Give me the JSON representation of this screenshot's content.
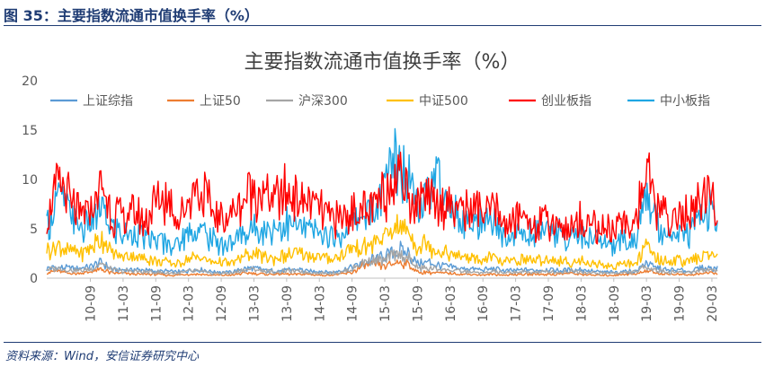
{
  "figure": {
    "caption": "图 35：主要指数流通市值换手率（%）",
    "source": "资料来源：Wind，安信证券研究中心"
  },
  "colors": {
    "caption": "#1f3c74",
    "axis_text": "#595959",
    "gridline": "#d9d9d9"
  },
  "chart_data": {
    "type": "line",
    "title": "主要指数流通市值换手率（%）",
    "xlabel": "",
    "ylabel": "",
    "ylim": [
      0,
      20
    ],
    "yticks": [
      0,
      5,
      10,
      15,
      20
    ],
    "grid": false,
    "legend_position": "top",
    "x_tick_labels": [
      "10-09",
      "11-03",
      "11-09",
      "12-03",
      "12-09",
      "13-03",
      "13-09",
      "14-03",
      "14-09",
      "15-03",
      "15-09",
      "16-03",
      "16-09",
      "17-03",
      "17-09",
      "18-03",
      "18-09",
      "19-03",
      "19-09",
      "20-03"
    ],
    "x": [
      "10-01",
      "10-03",
      "10-05",
      "10-07",
      "10-09",
      "10-11",
      "11-01",
      "11-03",
      "11-05",
      "11-07",
      "11-09",
      "11-11",
      "12-01",
      "12-03",
      "12-05",
      "12-07",
      "12-09",
      "12-11",
      "13-01",
      "13-03",
      "13-05",
      "13-07",
      "13-09",
      "13-11",
      "14-01",
      "14-03",
      "14-05",
      "14-07",
      "14-09",
      "14-11",
      "15-01",
      "15-03",
      "15-05",
      "15-07",
      "15-09",
      "15-11",
      "16-01",
      "16-03",
      "16-05",
      "16-07",
      "16-09",
      "16-11",
      "17-01",
      "17-03",
      "17-05",
      "17-07",
      "17-09",
      "17-11",
      "18-01",
      "18-03",
      "18-05",
      "18-07",
      "18-09",
      "18-11",
      "19-01",
      "19-03",
      "19-05",
      "19-07",
      "19-09",
      "19-11",
      "20-01",
      "20-03",
      "20-04"
    ],
    "series": [
      {
        "name": "上证综指",
        "color": "#5b9bd5",
        "values": [
          1.0,
          1.1,
          1.0,
          1.0,
          1.1,
          1.6,
          0.9,
          0.8,
          0.9,
          0.8,
          0.7,
          0.7,
          0.6,
          0.8,
          0.9,
          0.7,
          0.6,
          0.6,
          0.9,
          1.0,
          0.8,
          0.7,
          0.8,
          0.9,
          0.7,
          0.7,
          0.6,
          0.8,
          1.1,
          1.5,
          1.9,
          2.2,
          2.9,
          2.6,
          1.5,
          1.6,
          1.3,
          1.1,
          1.0,
          0.9,
          0.8,
          1.0,
          0.7,
          0.8,
          0.8,
          0.8,
          0.9,
          0.8,
          0.8,
          0.9,
          0.7,
          0.6,
          0.6,
          0.7,
          0.7,
          1.6,
          1.0,
          0.8,
          0.8,
          0.7,
          1.0,
          1.1,
          0.9
        ]
      },
      {
        "name": "上证50",
        "color": "#ed7d31",
        "values": [
          0.6,
          0.7,
          0.5,
          0.5,
          0.6,
          0.9,
          0.5,
          0.5,
          0.4,
          0.4,
          0.4,
          0.3,
          0.3,
          0.4,
          0.4,
          0.3,
          0.3,
          0.3,
          0.5,
          0.5,
          0.4,
          0.4,
          0.4,
          0.4,
          0.4,
          0.3,
          0.3,
          0.4,
          0.6,
          1.2,
          1.4,
          1.2,
          1.6,
          1.5,
          0.6,
          0.6,
          0.5,
          0.5,
          0.4,
          0.4,
          0.3,
          0.4,
          0.3,
          0.4,
          0.4,
          0.4,
          0.4,
          0.4,
          0.5,
          0.4,
          0.3,
          0.3,
          0.3,
          0.4,
          0.4,
          0.8,
          0.5,
          0.4,
          0.4,
          0.3,
          0.5,
          0.5,
          0.5
        ]
      },
      {
        "name": "沪深300",
        "color": "#a5a5a5",
        "values": [
          0.9,
          1.0,
          0.8,
          0.8,
          0.9,
          1.5,
          0.8,
          0.7,
          0.7,
          0.6,
          0.6,
          0.5,
          0.5,
          0.7,
          0.7,
          0.5,
          0.5,
          0.5,
          0.8,
          0.9,
          0.7,
          0.6,
          0.7,
          0.7,
          0.6,
          0.5,
          0.5,
          0.6,
          0.9,
          1.6,
          1.8,
          1.7,
          2.4,
          2.2,
          1.0,
          1.0,
          0.9,
          0.8,
          0.7,
          0.6,
          0.5,
          0.7,
          0.5,
          0.6,
          0.6,
          0.6,
          0.7,
          0.6,
          0.7,
          0.7,
          0.5,
          0.5,
          0.5,
          0.6,
          0.6,
          1.2,
          0.8,
          0.6,
          0.6,
          0.6,
          0.8,
          0.9,
          0.8
        ]
      },
      {
        "name": "中证500",
        "color": "#ffc000",
        "values": [
          2.8,
          3.2,
          2.7,
          2.6,
          2.9,
          4.2,
          2.4,
          2.2,
          2.3,
          2.0,
          1.8,
          1.6,
          1.5,
          2.0,
          2.2,
          1.7,
          1.6,
          1.5,
          2.2,
          2.5,
          2.1,
          2.0,
          2.3,
          2.4,
          2.2,
          2.1,
          1.9,
          2.2,
          3.0,
          3.1,
          3.6,
          4.0,
          5.4,
          4.8,
          3.2,
          3.4,
          2.9,
          2.4,
          2.2,
          2.0,
          1.8,
          2.1,
          1.6,
          1.8,
          1.9,
          1.8,
          2.0,
          1.7,
          1.6,
          1.8,
          1.5,
          1.3,
          1.3,
          1.5,
          1.5,
          3.2,
          2.0,
          1.7,
          1.8,
          1.6,
          2.2,
          2.4,
          2.0
        ]
      },
      {
        "name": "创业板指",
        "color": "#ff0000",
        "values": [
          5.5,
          9.5,
          8.0,
          6.0,
          7.0,
          9.0,
          6.5,
          6.0,
          6.5,
          5.5,
          7.5,
          8.0,
          6.0,
          8.0,
          9.5,
          7.0,
          6.0,
          6.5,
          8.0,
          9.5,
          8.5,
          8.0,
          9.0,
          8.0,
          7.5,
          7.0,
          6.0,
          6.0,
          7.0,
          6.5,
          7.0,
          8.5,
          11.5,
          9.0,
          7.0,
          8.5,
          8.0,
          7.5,
          7.0,
          7.0,
          6.5,
          7.0,
          5.5,
          6.0,
          6.0,
          5.5,
          6.0,
          5.5,
          5.0,
          6.0,
          5.5,
          5.0,
          5.0,
          5.5,
          6.0,
          10.5,
          7.0,
          6.0,
          6.5,
          6.0,
          8.0,
          8.5,
          6.5
        ]
      },
      {
        "name": "中小板指",
        "color": "#1fa6e3",
        "values": [
          5.0,
          8.5,
          7.0,
          5.0,
          5.5,
          7.0,
          5.0,
          4.5,
          4.5,
          4.0,
          4.0,
          3.5,
          3.5,
          4.5,
          5.0,
          4.0,
          3.5,
          3.5,
          4.5,
          5.0,
          5.0,
          5.0,
          5.5,
          5.0,
          5.0,
          4.5,
          4.0,
          4.5,
          5.5,
          6.5,
          7.0,
          9.0,
          13.0,
          11.0,
          8.0,
          9.5,
          9.5,
          7.0,
          6.0,
          5.5,
          5.0,
          5.5,
          4.0,
          4.5,
          4.5,
          4.5,
          5.0,
          4.5,
          4.0,
          4.5,
          4.0,
          3.5,
          3.5,
          4.0,
          4.0,
          8.5,
          5.5,
          4.5,
          5.0,
          4.5,
          6.5,
          7.0,
          5.0
        ]
      }
    ]
  }
}
